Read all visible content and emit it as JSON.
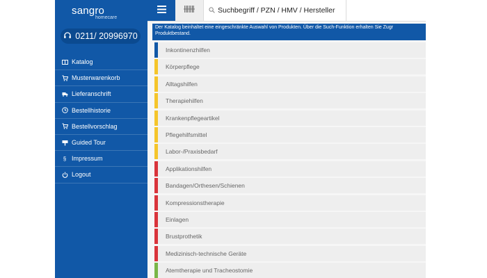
{
  "brand": {
    "name": "sangro",
    "sub": "homecare"
  },
  "phone": {
    "number": "0211/ 20996970"
  },
  "nav": [
    {
      "label": "Katalog",
      "icon": "catalog-icon"
    },
    {
      "label": "Musterwarenkorb",
      "icon": "cart-icon"
    },
    {
      "label": "Lieferanschrift",
      "icon": "truck-icon"
    },
    {
      "label": "Bestellhistorie",
      "icon": "clock-icon"
    },
    {
      "label": "Bestellvorschlag",
      "icon": "cart-icon"
    },
    {
      "label": "Guided Tour",
      "icon": "flag-icon"
    },
    {
      "label": "Impressum",
      "icon": "section-icon"
    },
    {
      "label": "Logout",
      "icon": "power-icon"
    }
  ],
  "search": {
    "placeholder": "Suchbegriff / PZN / HMV / Hersteller"
  },
  "banner": {
    "line1": "Der Katalog beinhaltet eine eingeschränkte Auswahl von Produkten. Über die Such-Funktion erhalten Sie Zugr",
    "line2": "Produktbestand."
  },
  "categories": [
    {
      "label": "Inkontinenzhilfen",
      "color": "#1158a7"
    },
    {
      "label": "Körperpflege",
      "color": "#f5c52b"
    },
    {
      "label": "Alltagshilfen",
      "color": "#f5c52b"
    },
    {
      "label": "Therapiehilfen",
      "color": "#f5c52b"
    },
    {
      "label": "Krankenpflegeartikel",
      "color": "#f5c52b"
    },
    {
      "label": "Pflegehilfsmittel",
      "color": "#f5c52b"
    },
    {
      "label": "Labor-/Praxisbedarf",
      "color": "#f5c52b"
    },
    {
      "label": "Applikationshilfen",
      "color": "#d9343b"
    },
    {
      "label": "Bandagen/Orthesen/Schienen",
      "color": "#d9343b"
    },
    {
      "label": "Kompressionstherapie",
      "color": "#d9343b"
    },
    {
      "label": "Einlagen",
      "color": "#d9343b"
    },
    {
      "label": "Brustprothetik",
      "color": "#d9343b"
    },
    {
      "label": "Medizinisch-technische Geräte",
      "color": "#d9343b"
    },
    {
      "label": "Atemtherapie und Tracheostomie",
      "color": "#7ab648"
    }
  ],
  "colors": {
    "primary": "#1158a7",
    "yellow": "#f5c52b",
    "red": "#d9343b",
    "green": "#7ab648"
  }
}
